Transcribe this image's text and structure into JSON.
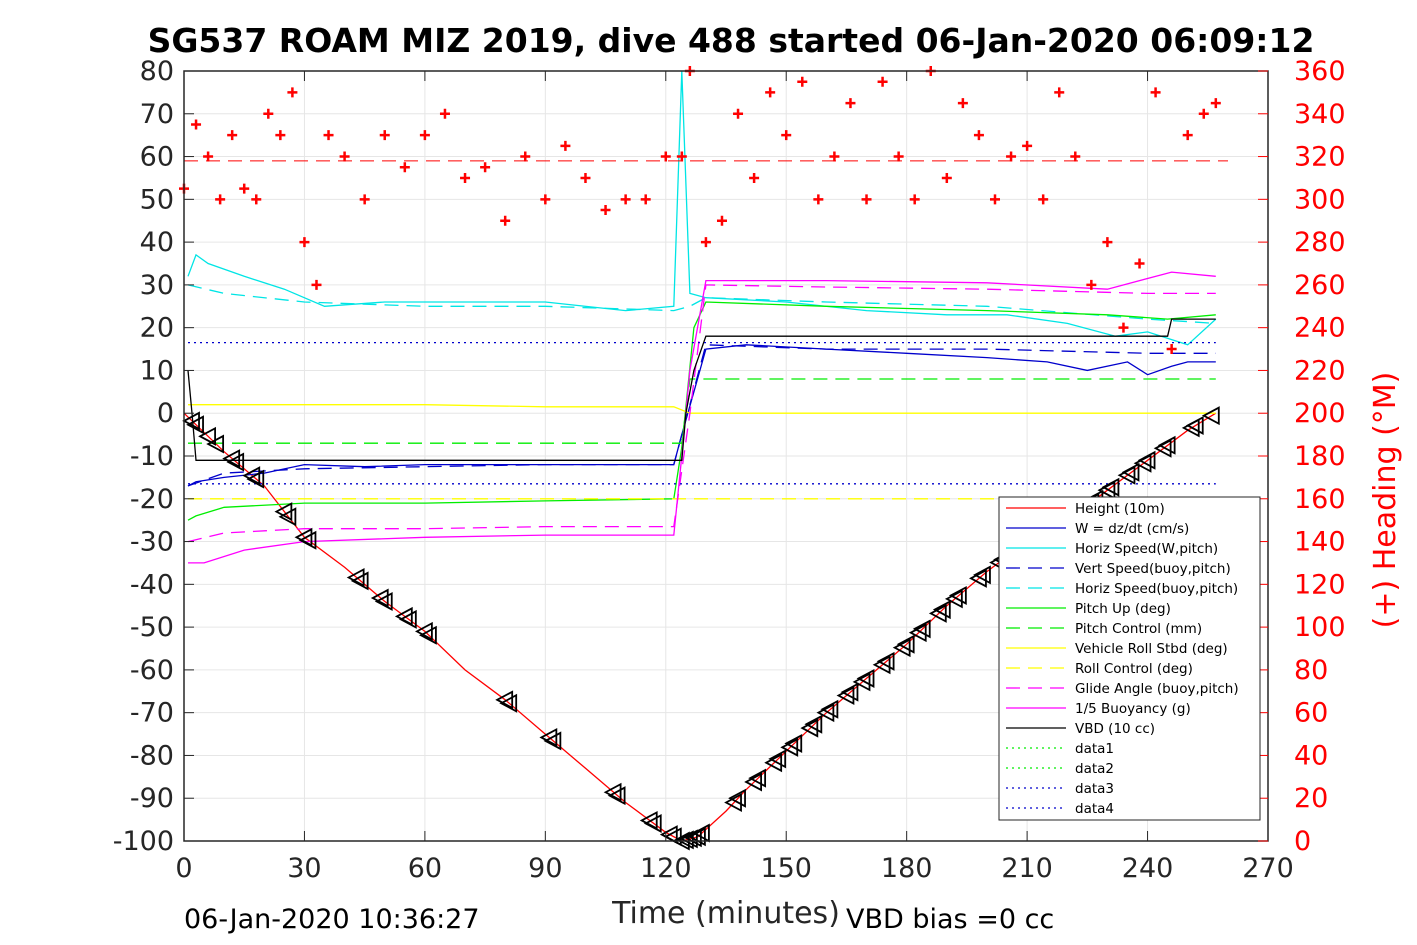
{
  "chart_data": {
    "type": "line",
    "title": "SG537 ROAM MIZ 2019, dive 488 started 06-Jan-2020 06:09:12",
    "xlabel": "Time (minutes)",
    "ylabel": "",
    "ylabel_right": "(+) Heading (°M)",
    "xlim": [
      0,
      270
    ],
    "ylim": [
      -100,
      80
    ],
    "ylim_right": [
      0,
      360
    ],
    "x_ticks": [
      "0",
      "30",
      "60",
      "90",
      "120",
      "150",
      "180",
      "210",
      "240",
      "270"
    ],
    "y_ticks": [
      "-100",
      "-90",
      "-80",
      "-70",
      "-60",
      "-50",
      "-40",
      "-30",
      "-20",
      "-10",
      "0",
      "10",
      "20",
      "30",
      "40",
      "50",
      "60",
      "70",
      "80"
    ],
    "y_ticks_right": [
      "0",
      "20",
      "40",
      "60",
      "80",
      "100",
      "120",
      "140",
      "160",
      "180",
      "200",
      "220",
      "240",
      "260",
      "280",
      "300",
      "320",
      "340",
      "360"
    ],
    "grid": true,
    "legend_position": "bottom-right",
    "footer_left": "06-Jan-2020 10:36:27",
    "footer_right": "VBD bias =0 cc",
    "series": [
      {
        "name": "Height (10m)",
        "color": "#ff0000",
        "style": "solid",
        "x": [
          0,
          10,
          20,
          30,
          40,
          50,
          60,
          70,
          80,
          90,
          100,
          110,
          120,
          124,
          128,
          135,
          140,
          150,
          160,
          170,
          180,
          190,
          200,
          210,
          220,
          230,
          240,
          250,
          257
        ],
        "y": [
          0,
          -9,
          -17,
          -29,
          -36,
          -44,
          -51,
          -60,
          -67,
          -75,
          -83,
          -91,
          -98,
          -100,
          -99,
          -93,
          -88,
          -79,
          -70,
          -62,
          -54,
          -45,
          -37,
          -30,
          -25,
          -18,
          -11,
          -4,
          0
        ]
      },
      {
        "name": "W = dz/dt (cm/s)",
        "color": "#0000cc",
        "style": "solid",
        "x": [
          1,
          3,
          10,
          20,
          30,
          45,
          60,
          80,
          100,
          122,
          124,
          127,
          130,
          140,
          160,
          180,
          200,
          215,
          225,
          235,
          240,
          246,
          250,
          257
        ],
        "y": [
          -17,
          -16,
          -15,
          -14,
          -12,
          -12.5,
          -12,
          -12,
          -12,
          -12,
          -5,
          5,
          15,
          16,
          15,
          14,
          13,
          12,
          10,
          12,
          9,
          11,
          12,
          12
        ]
      },
      {
        "name": "Horiz Speed(W,pitch)",
        "color": "#00e5e5",
        "style": "solid",
        "x": [
          1,
          3,
          6,
          15,
          25,
          35,
          50,
          70,
          90,
          110,
          122,
          124,
          126,
          130,
          150,
          170,
          190,
          205,
          220,
          232,
          240,
          250,
          257
        ],
        "y": [
          32,
          37,
          35,
          32,
          29,
          25,
          26,
          26,
          26,
          24,
          25,
          80,
          28,
          27,
          26,
          24,
          23,
          23,
          21,
          18,
          19,
          16,
          22
        ]
      },
      {
        "name": "Vert Speed(buoy,pitch)",
        "color": "#0000cc",
        "style": "dashed",
        "x": [
          1,
          10,
          30,
          60,
          90,
          122,
          126,
          130,
          160,
          200,
          240,
          257
        ],
        "y": [
          -17,
          -14,
          -13,
          -12.5,
          -12,
          -12,
          2,
          16,
          15,
          15,
          14,
          14
        ]
      },
      {
        "name": "Horiz Speed(buoy,pitch)",
        "color": "#00e5e5",
        "style": "dashed",
        "x": [
          1,
          10,
          30,
          60,
          90,
          122,
          126,
          130,
          160,
          200,
          240,
          257
        ],
        "y": [
          30,
          28,
          26,
          25,
          25,
          24,
          25,
          27,
          26,
          25,
          22,
          21
        ]
      },
      {
        "name": "Pitch Up (deg)",
        "color": "#00ee00",
        "style": "solid",
        "x": [
          1,
          3,
          10,
          30,
          60,
          90,
          122,
          124,
          127,
          130,
          160,
          200,
          230,
          245,
          257
        ],
        "y": [
          -25,
          -24,
          -22,
          -21,
          -21,
          -20.5,
          -20,
          -8,
          20,
          26,
          25,
          24,
          23,
          22,
          23
        ]
      },
      {
        "name": "Pitch Control (mm)",
        "color": "#00ee00",
        "style": "dashed",
        "x": [
          1,
          124,
          126,
          257
        ],
        "y": [
          -7,
          -7,
          8,
          8
        ]
      },
      {
        "name": "Vehicle Roll Stbd (deg)",
        "color": "#ffff00",
        "style": "solid",
        "x": [
          1,
          3,
          10,
          30,
          60,
          90,
          122,
          126,
          135,
          160,
          200,
          240,
          257
        ],
        "y": [
          2,
          2,
          2,
          2,
          2,
          1.5,
          1.5,
          0,
          0,
          0,
          0,
          0,
          0
        ]
      },
      {
        "name": "Roll Control (deg)",
        "color": "#ffff00",
        "style": "dashed",
        "x": [
          1,
          257
        ],
        "y": [
          -20,
          -20
        ]
      },
      {
        "name": "Glide Angle (buoy,pitch)",
        "color": "#ff00ff",
        "style": "dashed",
        "x": [
          1,
          10,
          30,
          60,
          90,
          122,
          126,
          130,
          160,
          200,
          240,
          257
        ],
        "y": [
          -30,
          -28,
          -27,
          -27,
          -26.5,
          -26.5,
          0,
          30,
          29.5,
          29,
          28,
          28
        ]
      },
      {
        "name": "1/5 Buoyancy (g)",
        "color": "#ff00ff",
        "style": "solid",
        "x": [
          1,
          5,
          15,
          30,
          60,
          90,
          122,
          124,
          126,
          130,
          160,
          200,
          230,
          246,
          257
        ],
        "y": [
          -35,
          -35,
          -32,
          -30,
          -29,
          -28.5,
          -28.5,
          -10,
          10,
          31,
          31,
          30.5,
          29,
          33,
          32
        ]
      },
      {
        "name": "VBD (10 cc)",
        "color": "#000000",
        "style": "solid",
        "x": [
          1,
          2,
          3,
          124,
          125,
          127,
          130,
          245,
          246,
          257
        ],
        "y": [
          10,
          0,
          -11,
          -11,
          0,
          10,
          18,
          18,
          22,
          22
        ]
      },
      {
        "name": "data1",
        "color": "#00ee00",
        "style": "dotted",
        "x": [],
        "y": []
      },
      {
        "name": "data2",
        "color": "#00ee00",
        "style": "dotted",
        "x": [],
        "y": []
      },
      {
        "name": "data3",
        "color": "#0000cc",
        "style": "dotted",
        "x": [
          1,
          257
        ],
        "y": [
          16.5,
          16.5
        ]
      },
      {
        "name": "data4",
        "color": "#0000cc",
        "style": "dotted",
        "x": [
          1,
          257
        ],
        "y": [
          -16.5,
          -16.5
        ]
      }
    ],
    "heading": {
      "color": "#ff0000",
      "marker": "+",
      "axis": "right",
      "reference_line": 318,
      "x": [
        0,
        3,
        6,
        9,
        12,
        15,
        18,
        21,
        24,
        27,
        30,
        33,
        36,
        40,
        45,
        50,
        55,
        60,
        65,
        70,
        75,
        80,
        85,
        90,
        95,
        100,
        105,
        110,
        115,
        120,
        124,
        126,
        130,
        134,
        138,
        142,
        146,
        150,
        154,
        158,
        162,
        166,
        170,
        174,
        178,
        182,
        186,
        190,
        194,
        198,
        202,
        206,
        210,
        214,
        218,
        222,
        226,
        230,
        234,
        238,
        242,
        246,
        250,
        254,
        257
      ],
      "y": [
        305,
        335,
        320,
        300,
        330,
        305,
        300,
        340,
        330,
        350,
        280,
        260,
        330,
        320,
        300,
        330,
        315,
        330,
        340,
        310,
        315,
        290,
        320,
        300,
        325,
        310,
        295,
        300,
        300,
        320,
        320,
        360,
        280,
        290,
        340,
        310,
        350,
        330,
        355,
        300,
        320,
        345,
        300,
        355,
        320,
        300,
        360,
        310,
        345,
        330,
        300,
        320,
        325,
        300,
        350,
        320,
        260,
        280,
        240,
        270,
        350,
        230,
        330,
        340,
        345
      ]
    },
    "markers": {
      "symbol": "triangle-left",
      "color": "#000000",
      "x": [
        2,
        3,
        6,
        8,
        12,
        13,
        17,
        18,
        25,
        26,
        30,
        31,
        43,
        44,
        49,
        50,
        55,
        56,
        60,
        61,
        80,
        81,
        91,
        92,
        107,
        108,
        116,
        117,
        121,
        122,
        124,
        125,
        126,
        127,
        128,
        129,
        137,
        138,
        142,
        143,
        147,
        148,
        151,
        152,
        156,
        157,
        160,
        161,
        165,
        166,
        169,
        170,
        174,
        175,
        179,
        180,
        183,
        184,
        188,
        189,
        192,
        193,
        198,
        199,
        203,
        204,
        209,
        210,
        215,
        216,
        219,
        220,
        226,
        227,
        230,
        231,
        235,
        236,
        239,
        240,
        244,
        245,
        251,
        252,
        256
      ]
    }
  }
}
